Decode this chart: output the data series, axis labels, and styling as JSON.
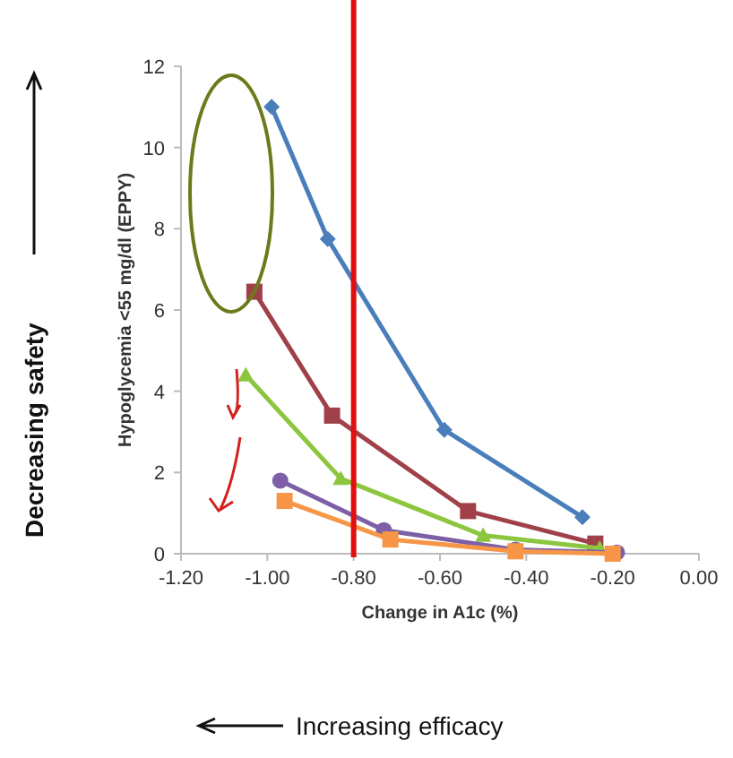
{
  "chart_data": {
    "type": "line",
    "xlabel": "Change in A1c (%)",
    "ylabel": "Hypoglycemia <55 mg/dl (EPPY)",
    "xlim": [
      -1.2,
      0
    ],
    "xticks": [
      {
        "value": -1.2,
        "label": "-1.20"
      },
      {
        "value": -1,
        "label": "-1.00"
      },
      {
        "value": -0.8,
        "label": "-0.80"
      },
      {
        "value": -0.6,
        "label": "-0.60"
      },
      {
        "value": -0.4,
        "label": "-0.40"
      },
      {
        "value": -0.2,
        "label": "-0.20"
      },
      {
        "value": 0,
        "label": "0.00"
      }
    ],
    "ylim": [
      0,
      12
    ],
    "yticks": [
      0,
      2,
      4,
      6,
      8,
      10,
      12
    ],
    "grid": false,
    "series": [
      {
        "color": "#4a7ebb",
        "marker": "diamond",
        "x": [
          -0.99,
          -0.86,
          -0.59,
          -0.27
        ],
        "values": [
          11.0,
          7.75,
          3.05,
          0.9
        ]
      },
      {
        "color": "#a0414a",
        "marker": "square",
        "x": [
          -1.03,
          -0.85,
          -0.535,
          -0.24
        ],
        "values": [
          6.45,
          3.4,
          1.05,
          0.25
        ]
      },
      {
        "color": "#8cc63e",
        "marker": "triangle",
        "x": [
          -1.05,
          -0.83,
          -0.5,
          -0.23
        ],
        "values": [
          4.4,
          1.85,
          0.45,
          0.13
        ]
      },
      {
        "color": "#7d5fa8",
        "marker": "circle",
        "x": [
          -0.97,
          -0.73,
          -0.425,
          -0.19
        ],
        "values": [
          1.8,
          0.58,
          0.1,
          0.03
        ]
      },
      {
        "color": "#f79646",
        "marker": "square",
        "x": [
          -0.96,
          -0.715,
          -0.425,
          -0.2
        ],
        "values": [
          1.3,
          0.35,
          0.06,
          0.0
        ]
      }
    ],
    "ref_lines": [
      {
        "axis": "x",
        "value": -0.8,
        "color": "#e01010"
      }
    ],
    "annotations": [
      "Decreasing safety",
      "Increasing efficacy"
    ]
  }
}
